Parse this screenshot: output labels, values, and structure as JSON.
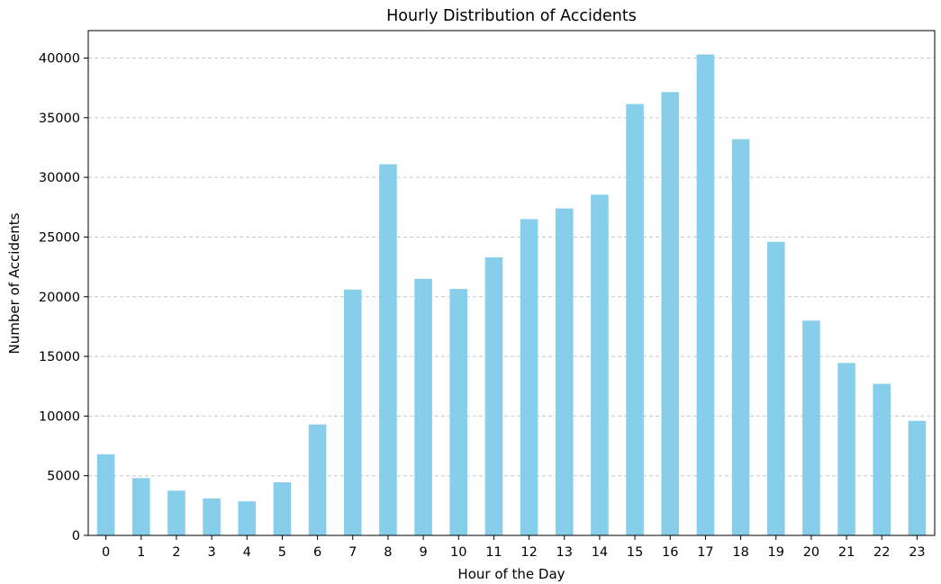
{
  "chart_data": {
    "type": "bar",
    "title": "Hourly Distribution of Accidents",
    "xlabel": "Hour of the Day",
    "ylabel": "Number of Accidents",
    "categories": [
      "0",
      "1",
      "2",
      "3",
      "4",
      "5",
      "6",
      "7",
      "8",
      "9",
      "10",
      "11",
      "12",
      "13",
      "14",
      "15",
      "16",
      "17",
      "18",
      "19",
      "20",
      "21",
      "22",
      "23"
    ],
    "values": [
      6800,
      4800,
      3750,
      3100,
      2850,
      4450,
      9300,
      20600,
      31100,
      21500,
      20650,
      23300,
      26500,
      27400,
      28550,
      36150,
      37150,
      40300,
      33200,
      24600,
      18000,
      14450,
      12700,
      9600
    ],
    "ylim": [
      0,
      42300
    ],
    "yticks": [
      0,
      5000,
      10000,
      15000,
      20000,
      25000,
      30000,
      35000,
      40000
    ],
    "grid": "y-dashed",
    "bar_color": "#87ceeb",
    "grid_color": "#c8c8c8",
    "axis_color": "#000000"
  }
}
